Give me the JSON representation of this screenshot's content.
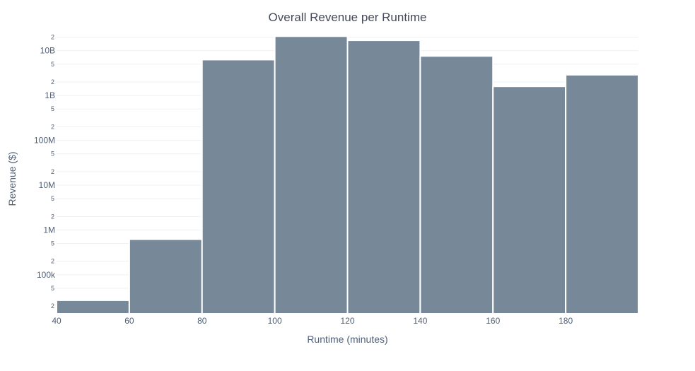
{
  "chart_data": {
    "type": "bar",
    "title": "Overall Revenue per Runtime",
    "xlabel": "Runtime (minutes)",
    "ylabel": "Revenue ($)",
    "bin_edges": [
      40,
      60,
      80,
      100,
      120,
      140,
      160,
      180,
      200
    ],
    "values": [
      27000,
      620000,
      6300000000,
      21000000000,
      17000000000,
      7600000000,
      1600000000,
      2900000000
    ],
    "xlim": [
      40,
      200
    ],
    "ylim": [
      13500,
      22000000000
    ],
    "y_scale": "log",
    "x_ticks": [
      {
        "value": 40,
        "label": "40"
      },
      {
        "value": 60,
        "label": "60"
      },
      {
        "value": 80,
        "label": "80"
      },
      {
        "value": 100,
        "label": "100"
      },
      {
        "value": 120,
        "label": "120"
      },
      {
        "value": 140,
        "label": "140"
      },
      {
        "value": 160,
        "label": "160"
      },
      {
        "value": 180,
        "label": "180"
      }
    ],
    "y_major_ticks": [
      {
        "value": 100000,
        "label": "100k"
      },
      {
        "value": 1000000,
        "label": "1M"
      },
      {
        "value": 10000000,
        "label": "10M"
      },
      {
        "value": 100000000,
        "label": "100M"
      },
      {
        "value": 1000000000,
        "label": "1B"
      },
      {
        "value": 10000000000,
        "label": "10B"
      }
    ],
    "y_minor_ticks": [
      {
        "value": 20000,
        "label": "2"
      },
      {
        "value": 50000,
        "label": "5"
      },
      {
        "value": 200000,
        "label": "2"
      },
      {
        "value": 500000,
        "label": "5"
      },
      {
        "value": 2000000,
        "label": "2"
      },
      {
        "value": 5000000,
        "label": "5"
      },
      {
        "value": 20000000,
        "label": "2"
      },
      {
        "value": 50000000,
        "label": "5"
      },
      {
        "value": 200000000,
        "label": "2"
      },
      {
        "value": 500000000,
        "label": "5"
      },
      {
        "value": 2000000000,
        "label": "2"
      },
      {
        "value": 5000000000,
        "label": "5"
      },
      {
        "value": 20000000000,
        "label": "2"
      }
    ],
    "grid": true,
    "bar_color": "#778899"
  }
}
